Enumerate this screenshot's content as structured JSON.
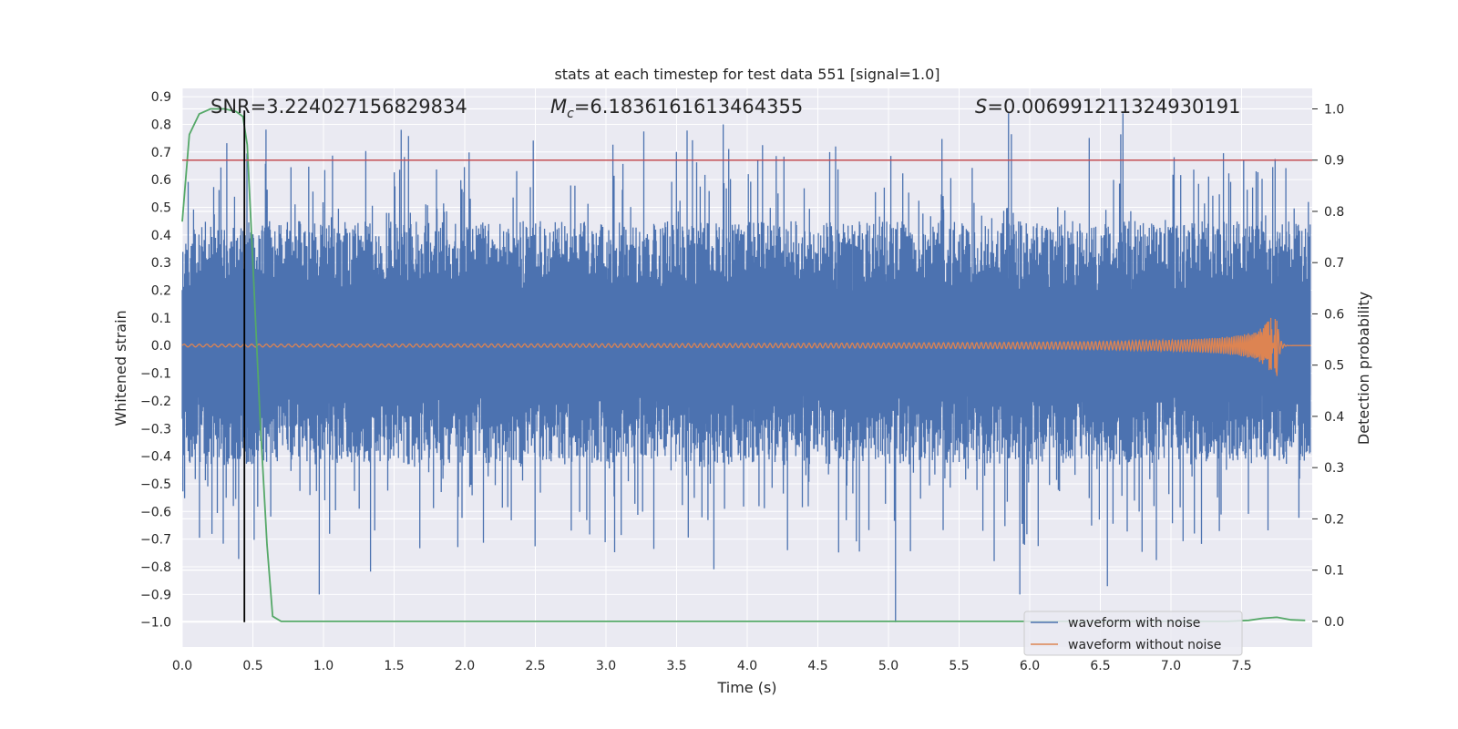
{
  "chart_data": {
    "type": "line",
    "title": "stats at each timestep for test data 551 [signal=1.0]",
    "xlabel": "Time (s)",
    "ylabel_left": "Whitened strain",
    "ylabel_right": "Detection probability",
    "xlim": [
      0.0,
      8.0
    ],
    "ylim_left": [
      -1.09,
      0.93
    ],
    "ylim_right": [
      -0.05,
      1.04
    ],
    "x_ticks": [
      "0.0",
      "0.5",
      "1.0",
      "1.5",
      "2.0",
      "2.5",
      "3.0",
      "3.5",
      "4.0",
      "4.5",
      "5.0",
      "5.5",
      "6.0",
      "6.5",
      "7.0",
      "7.5"
    ],
    "y_ticks_left": [
      "0.9",
      "0.8",
      "0.7",
      "0.6",
      "0.5",
      "0.4",
      "0.3",
      "0.2",
      "0.1",
      "0.0",
      "−0.1",
      "−0.2",
      "−0.3",
      "−0.4",
      "−0.5",
      "−0.6",
      "−0.7",
      "−0.8",
      "−0.9",
      "−1.0"
    ],
    "y_ticks_right": [
      "1.0",
      "0.9",
      "0.8",
      "0.7",
      "0.6",
      "0.5",
      "0.4",
      "0.3",
      "0.2",
      "0.1",
      "0.0"
    ],
    "grid": true,
    "legend_position": "lower-right",
    "annotations": {
      "snr": "SNR=3.224027156829834",
      "mc_symbol": "M",
      "mc_sub": "c",
      "mc_value": "=6.1836161613464355",
      "s_symbol": "S",
      "s_value": "=0.006991211324930191"
    },
    "threshold_line": {
      "axis": "right",
      "y": 0.9,
      "color": "#c44e52"
    },
    "marker_line": {
      "x": 0.44,
      "y_range": [
        -1.0,
        0.85
      ],
      "color": "#000000"
    },
    "series": [
      {
        "name": "waveform with noise",
        "axis": "left",
        "color": "#4c72b0",
        "description_values": {
          "envelope_pos_typical": 0.55,
          "envelope_neg_typical": -0.5,
          "max": 0.84,
          "min": -1.0,
          "x_end": 7.99
        }
      },
      {
        "name": "waveform without noise",
        "axis": "left",
        "color": "#dd8452",
        "description_values": {
          "chirp_amplitude_start": 0.005,
          "chirp_peak_x": 7.75,
          "chirp_peak_pos": 0.09,
          "chirp_peak_neg": -0.11,
          "x_end": 7.99
        }
      },
      {
        "name": "",
        "axis": "right",
        "color": "#55a868",
        "x": [
          0.0,
          0.05,
          0.12,
          0.2,
          0.3,
          0.38,
          0.43,
          0.46,
          0.5,
          0.55,
          0.6,
          0.64,
          0.7,
          0.8,
          1.0,
          2.0,
          3.0,
          4.0,
          5.0,
          6.0,
          7.0,
          7.4,
          7.55,
          7.65,
          7.75,
          7.85,
          7.95
        ],
        "values": [
          0.78,
          0.95,
          0.99,
          1.0,
          1.0,
          0.995,
          0.985,
          0.93,
          0.7,
          0.4,
          0.15,
          0.01,
          0.0,
          0.0,
          0.0,
          0.0,
          0.0,
          0.0,
          0.0,
          0.0,
          0.0,
          0.0,
          0.002,
          0.006,
          0.008,
          0.003,
          0.002
        ]
      }
    ]
  }
}
